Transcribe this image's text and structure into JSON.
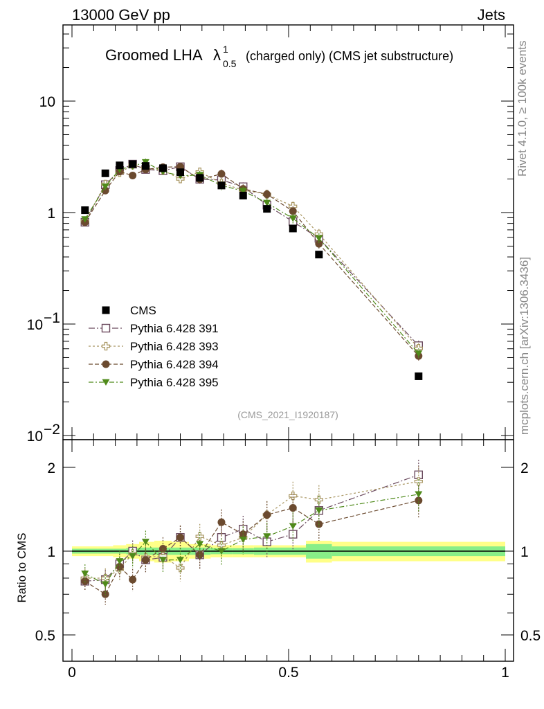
{
  "header": {
    "left": "13000 GeV pp",
    "right": "Jets"
  },
  "title": {
    "prefix": "Groomed LHA",
    "lambda": "λ",
    "sup": "1",
    "sub": "0.5",
    "suffix": "(charged only) (CMS jet substructure)"
  },
  "side": {
    "rivet": "Rivet 4.1.0, ≥ 100k events",
    "mcplots": "mcplots.cern.ch [arXiv:1306.3436]"
  },
  "analysis_ref": "(CMS_2021_I1920187)",
  "axes": {
    "ratio_ylabel": "Ratio to CMS",
    "main_y_ticks": [
      {
        "value": 10,
        "label": "10",
        "sup": ""
      },
      {
        "value": 1,
        "label": "1",
        "sup": ""
      },
      {
        "value": 0.1,
        "label": "10",
        "sup": "−1"
      },
      {
        "value": 0.01,
        "label": "10",
        "sup": "−2"
      }
    ],
    "ratio_y_ticks": [
      {
        "value": 2,
        "label": "2"
      },
      {
        "value": 1,
        "label": "1"
      },
      {
        "value": 0.5,
        "label": "0.5"
      }
    ],
    "x_ticks": [
      {
        "value": 0,
        "label": "0"
      },
      {
        "value": 0.5,
        "label": "0.5"
      },
      {
        "value": 1,
        "label": "1"
      }
    ]
  },
  "chart_data": {
    "type": "scatter",
    "xlim": [
      0,
      1
    ],
    "ylim_main": [
      0.01,
      50
    ],
    "yscale_main": "log",
    "ylim_ratio": [
      0.4,
      2.4
    ],
    "yscale_ratio": "log",
    "x": [
      0.03,
      0.077,
      0.11,
      0.14,
      0.17,
      0.21,
      0.25,
      0.295,
      0.345,
      0.395,
      0.45,
      0.51,
      0.57,
      0.8
    ],
    "bins": [
      [
        0,
        0.06
      ],
      [
        0.06,
        0.095
      ],
      [
        0.095,
        0.125
      ],
      [
        0.125,
        0.155
      ],
      [
        0.155,
        0.19
      ],
      [
        0.19,
        0.23
      ],
      [
        0.23,
        0.27
      ],
      [
        0.27,
        0.32
      ],
      [
        0.32,
        0.37
      ],
      [
        0.37,
        0.42
      ],
      [
        0.42,
        0.48
      ],
      [
        0.48,
        0.54
      ],
      [
        0.54,
        0.6
      ],
      [
        0.6,
        1.0
      ]
    ],
    "reference": {
      "name": "CMS",
      "color": "#000000",
      "values": [
        1.05,
        2.25,
        2.65,
        2.72,
        2.62,
        2.5,
        2.3,
        2.05,
        1.75,
        1.42,
        1.08,
        0.72,
        0.42,
        0.034
      ]
    },
    "ratio_band": {
      "stat_halfwidth": [
        0.02,
        0.02,
        0.02,
        0.025,
        0.03,
        0.03,
        0.03,
        0.03,
        0.025,
        0.025,
        0.03,
        0.03,
        0.06,
        0.04
      ],
      "total_halfwidth": [
        0.04,
        0.04,
        0.05,
        0.06,
        0.08,
        0.09,
        0.08,
        0.06,
        0.05,
        0.05,
        0.05,
        0.05,
        0.09,
        0.08
      ],
      "stat_color": "#88ee88",
      "total_color": "#ffff88"
    },
    "series": [
      {
        "name": "Pythia 6.428 391",
        "color": "#6b4a5e",
        "marker": "open-square",
        "dash": "9,3,2,3",
        "ratio": [
          0.78,
          0.79,
          0.9,
          1.0,
          0.93,
          0.95,
          1.12,
          0.97,
          1.12,
          1.2,
          1.08,
          1.15,
          1.4,
          1.88
        ]
      },
      {
        "name": "Pythia 6.428 393",
        "color": "#a89560",
        "marker": "open-cross",
        "dash": "3,3",
        "ratio": [
          0.8,
          0.8,
          0.86,
          0.98,
          0.95,
          0.96,
          0.87,
          1.13,
          1.05,
          1.12,
          1.35,
          1.58,
          1.53,
          1.78
        ]
      },
      {
        "name": "Pythia 6.428 394",
        "color": "#6b4a2f",
        "marker": "filled-circle",
        "dash": "6,3",
        "ratio": [
          0.78,
          0.7,
          0.88,
          0.79,
          0.93,
          1.02,
          1.12,
          0.97,
          1.27,
          1.15,
          1.35,
          1.43,
          1.25,
          1.52
        ]
      },
      {
        "name": "Pythia 6.428 395",
        "color": "#4f8a1a",
        "marker": "filled-triangle-down",
        "dash": "7,3,2,3",
        "ratio": [
          0.83,
          0.76,
          0.92,
          0.96,
          1.08,
          0.93,
          0.93,
          1.06,
          1.0,
          1.1,
          1.13,
          1.23,
          1.4,
          1.6
        ]
      }
    ]
  }
}
